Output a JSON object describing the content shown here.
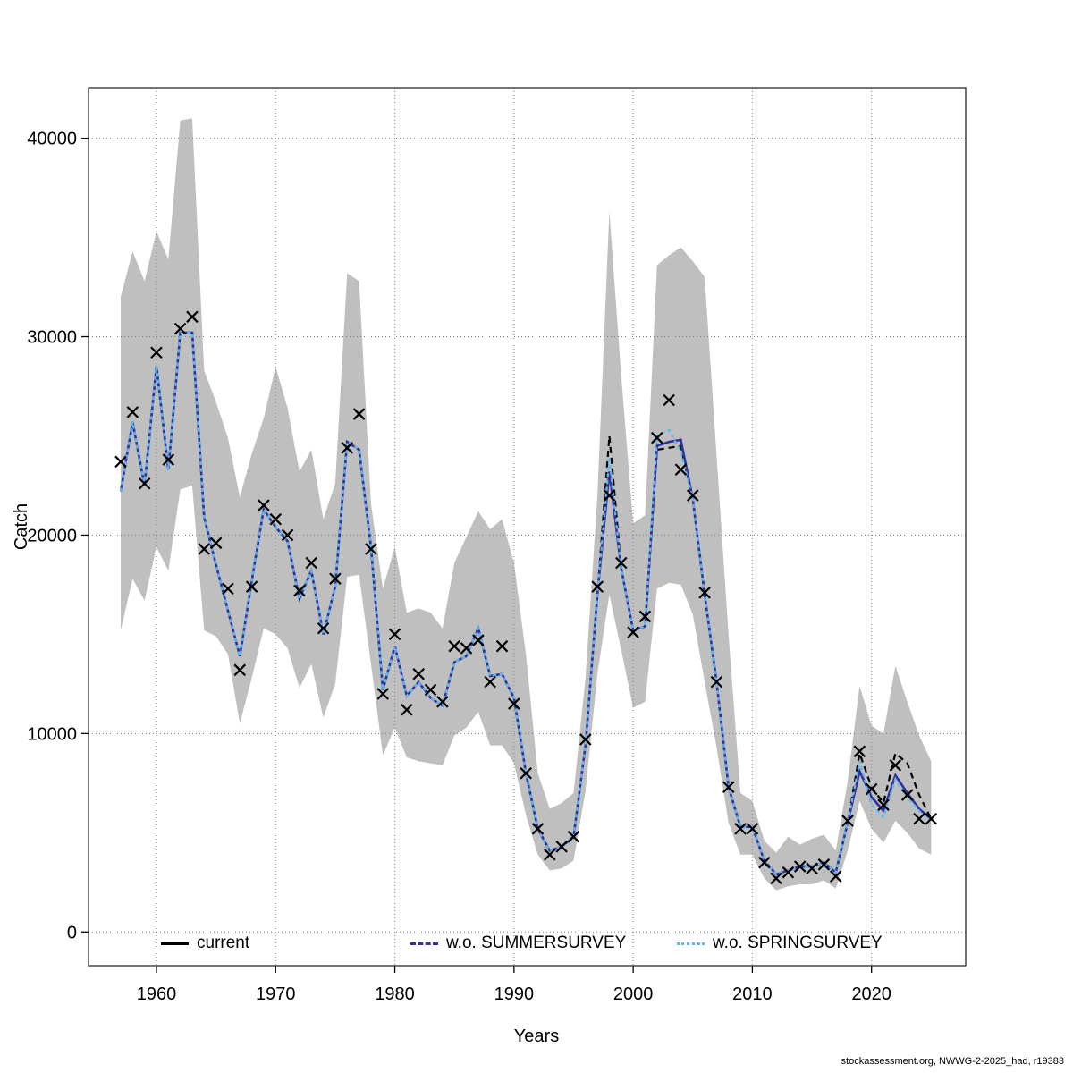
{
  "footer": {
    "text": "stockassessment.org, NWWG-2-2025_had, r19383"
  },
  "axes": {
    "x_label": "Years",
    "y_label": "Catch",
    "x_tick_years": [
      1960,
      1970,
      1980,
      1990,
      2000,
      2010,
      2020
    ],
    "x_tick_labels": [
      "1960",
      "1970",
      "1980",
      "1990",
      "2000",
      "2010",
      "2020"
    ],
    "y_tick_values": [
      0,
      10000,
      20000,
      30000,
      40000
    ],
    "y_tick_labels": [
      "0",
      "10000",
      "20000",
      "30000",
      "40000"
    ]
  },
  "legend": {
    "items": [
      {
        "label": "current",
        "color": "#000000",
        "style": "solid"
      },
      {
        "label": "w.o. SUMMERSURVEY",
        "color": "#31319e",
        "style": "dashed"
      },
      {
        "label": "w.o. SPRINGSURVEY",
        "color": "#5fb8ea",
        "style": "dotted"
      }
    ]
  },
  "chart_data": {
    "type": "line",
    "title": "",
    "xlabel": "Years",
    "ylabel": "Catch",
    "xlim": [
      1954.3,
      2027.9
    ],
    "ylim": [
      -1700,
      42550
    ],
    "grid": "dotted",
    "legend_position": "bottom-inside",
    "band_color": "#bfbfbf",
    "grid_color": "#7d7d7d",
    "marker": {
      "symbol": "x",
      "color": "#000000",
      "size": 6
    },
    "x": [
      1957,
      1958,
      1959,
      1960,
      1961,
      1962,
      1963,
      1964,
      1965,
      1966,
      1967,
      1968,
      1969,
      1970,
      1971,
      1972,
      1973,
      1974,
      1975,
      1976,
      1977,
      1978,
      1979,
      1980,
      1981,
      1982,
      1983,
      1984,
      1985,
      1986,
      1987,
      1988,
      1989,
      1990,
      1991,
      1992,
      1993,
      1994,
      1995,
      1996,
      1997,
      1998,
      1999,
      2000,
      2001,
      2002,
      2003,
      2004,
      2005,
      2006,
      2007,
      2008,
      2009,
      2010,
      2011,
      2012,
      2013,
      2014,
      2015,
      2016,
      2017,
      2018,
      2019,
      2020,
      2021,
      2022,
      2023,
      2024,
      2025
    ],
    "observed_catch": [
      23700,
      26200,
      22600,
      29200,
      23800,
      30400,
      31000,
      19300,
      19600,
      17300,
      13200,
      17400,
      21500,
      20800,
      20000,
      17200,
      18600,
      15300,
      17800,
      24400,
      26100,
      19300,
      12000,
      15000,
      11200,
      13000,
      12200,
      11600,
      14400,
      14300,
      14700,
      12600,
      14400,
      11500,
      8000,
      5200,
      3900,
      4300,
      4800,
      9700,
      17400,
      22000,
      18600,
      15100,
      15900,
      24900,
      26800,
      23300,
      22000,
      17100,
      12600,
      7300,
      5200,
      5200,
      3500,
      2700,
      3000,
      3300,
      3200,
      3400,
      2800,
      5600,
      9100,
      7200,
      6400,
      8400,
      6900,
      5700,
      5700
    ],
    "series": [
      {
        "name": "current",
        "color": "#000000",
        "dash": "7 5",
        "width": 2.2,
        "values": [
          22200,
          25700,
          22500,
          28500,
          23300,
          30200,
          30200,
          20900,
          18500,
          16200,
          13900,
          17700,
          21300,
          20400,
          19700,
          16800,
          18200,
          15000,
          17400,
          24700,
          24300,
          19400,
          12200,
          14400,
          11900,
          12600,
          11800,
          11400,
          13600,
          13900,
          15300,
          12900,
          13000,
          11800,
          8000,
          5200,
          4100,
          4300,
          4800,
          9400,
          17000,
          25000,
          18300,
          15200,
          15400,
          24300,
          24400,
          24500,
          21800,
          17000,
          12600,
          7300,
          5300,
          5300,
          3600,
          2900,
          3100,
          3300,
          3300,
          3500,
          3000,
          5500,
          9000,
          7300,
          6500,
          9000,
          8500,
          6900,
          5700
        ]
      },
      {
        "name": "w.o. SUMMERSURVEY",
        "color": "#31319e",
        "dash": "",
        "width": 2.6,
        "values": [
          22200,
          25700,
          22500,
          28500,
          23300,
          30200,
          30200,
          20900,
          18500,
          16200,
          13900,
          17700,
          21300,
          20400,
          19700,
          16800,
          18200,
          15000,
          17400,
          24700,
          24300,
          19400,
          12200,
          14400,
          11900,
          12600,
          11800,
          11400,
          13600,
          13900,
          15300,
          12900,
          13000,
          11800,
          8000,
          5200,
          4100,
          4300,
          4800,
          9400,
          17000,
          23200,
          18300,
          15200,
          15400,
          24500,
          24700,
          24800,
          21800,
          17000,
          12600,
          7300,
          5300,
          5300,
          3600,
          2900,
          3100,
          3300,
          3300,
          3500,
          3000,
          5500,
          8100,
          6800,
          6100,
          7900,
          7000,
          6200,
          5700
        ]
      },
      {
        "name": "w.o. SPRINGSURVEY",
        "color": "#5fb8ea",
        "dash": "4 3.5",
        "width": 2.4,
        "values": [
          22200,
          25700,
          22500,
          28500,
          23300,
          30200,
          30200,
          20900,
          18500,
          16200,
          13900,
          17700,
          21300,
          20400,
          19700,
          16800,
          18200,
          15000,
          17400,
          24700,
          24300,
          19400,
          12200,
          14400,
          11900,
          12600,
          11800,
          11400,
          13600,
          13900,
          15300,
          12900,
          13000,
          11800,
          8000,
          5200,
          4100,
          4300,
          4800,
          9400,
          17000,
          23900,
          18300,
          15200,
          15400,
          25000,
          25300,
          24200,
          21800,
          17000,
          12600,
          7300,
          5300,
          5300,
          3600,
          2900,
          3100,
          3300,
          3300,
          3500,
          3000,
          5500,
          8600,
          6400,
          5800,
          7700,
          6800,
          6100,
          5600
        ]
      }
    ],
    "confidence_band": {
      "lower": [
        15200,
        17800,
        16700,
        19400,
        18200,
        22300,
        22500,
        15200,
        14900,
        14000,
        10500,
        12800,
        15300,
        15000,
        14300,
        12300,
        13500,
        10800,
        12500,
        17900,
        18000,
        13500,
        8900,
        10300,
        8800,
        8600,
        8500,
        8400,
        9900,
        10300,
        11100,
        9400,
        9400,
        8500,
        5900,
        3900,
        3100,
        3200,
        3600,
        7100,
        13000,
        17000,
        14200,
        11300,
        11600,
        17300,
        17600,
        17500,
        16000,
        12600,
        9300,
        5500,
        3900,
        3900,
        2700,
        2100,
        2300,
        2400,
        2400,
        2600,
        2200,
        4100,
        6600,
        5200,
        4500,
        5600,
        5000,
        4200,
        3900
      ],
      "upper": [
        32000,
        34300,
        32800,
        35300,
        33900,
        40900,
        41000,
        28300,
        26700,
        24900,
        21900,
        24100,
        25900,
        28500,
        26400,
        23200,
        24300,
        20800,
        22600,
        33200,
        32800,
        21600,
        17300,
        19400,
        16100,
        16300,
        16100,
        15300,
        18600,
        19900,
        21200,
        20300,
        20800,
        18600,
        14000,
        8000,
        6200,
        6500,
        7000,
        12800,
        22000,
        36300,
        28000,
        20600,
        21000,
        33600,
        34100,
        34500,
        33800,
        33000,
        24000,
        15000,
        7000,
        6600,
        4600,
        4000,
        4800,
        4400,
        4700,
        4900,
        4100,
        7600,
        12400,
        10400,
        10000,
        13400,
        11600,
        9900,
        8600
      ]
    }
  }
}
